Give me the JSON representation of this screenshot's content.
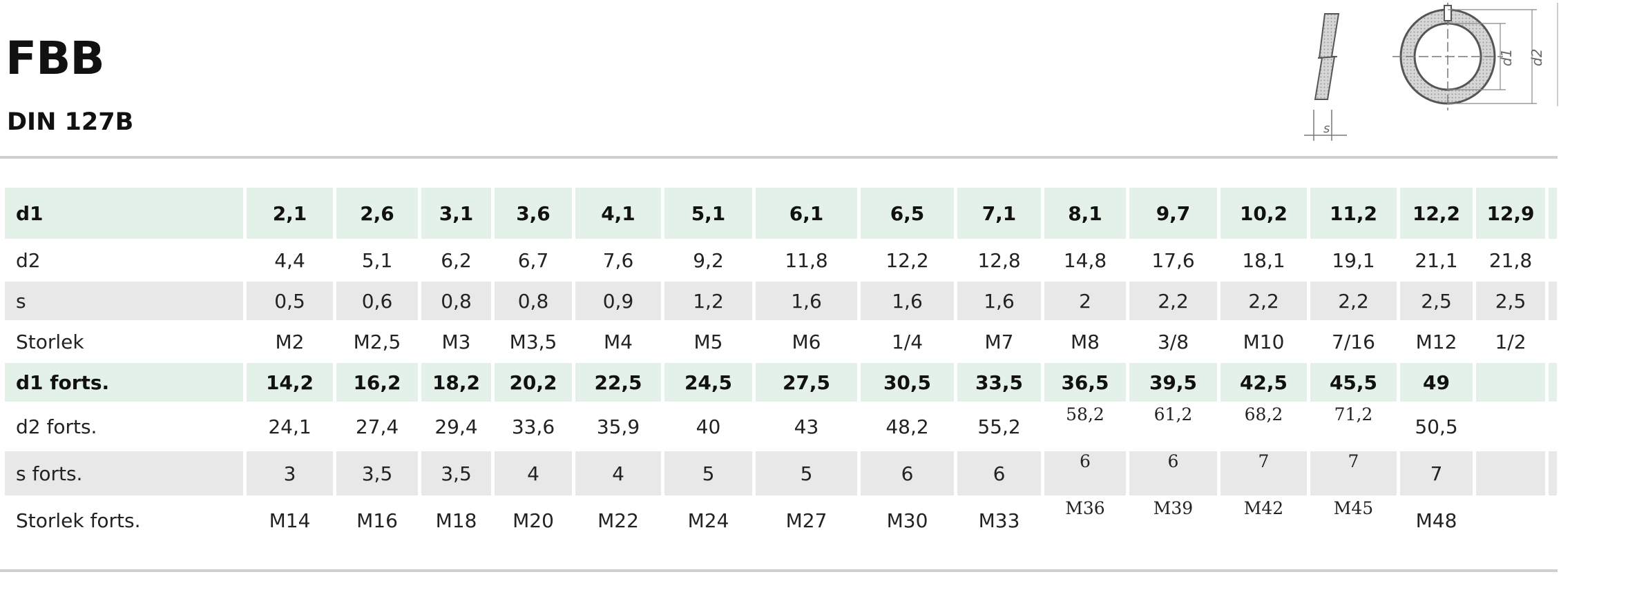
{
  "header": {
    "title": "FBB",
    "subtitle": "DIN 127B"
  },
  "diagram": {
    "label_s": "s",
    "label_d1": "d1",
    "label_d2": "d2"
  },
  "table": {
    "rows": [
      {
        "label": "d1",
        "style": "hl",
        "cells": [
          "2,1",
          "2,6",
          "3,1",
          "3,6",
          "4,1",
          "5,1",
          "6,1",
          "6,5",
          "7,1",
          "8,1",
          "9,7",
          "10,2",
          "11,2",
          "12,2",
          "12,9",
          ""
        ]
      },
      {
        "label": "d2",
        "style": "plain",
        "cells": [
          "4,4",
          "5,1",
          "6,2",
          "6,7",
          "7,6",
          "9,2",
          "11,8",
          "12,2",
          "12,8",
          "14,8",
          "17,6",
          "18,1",
          "19,1",
          "21,1",
          "21,8",
          ""
        ]
      },
      {
        "label": "s",
        "style": "gray",
        "cells": [
          "0,5",
          "0,6",
          "0,8",
          "0,8",
          "0,9",
          "1,2",
          "1,6",
          "1,6",
          "1,6",
          "2",
          "2,2",
          "2,2",
          "2,2",
          "2,5",
          "2,5",
          ""
        ]
      },
      {
        "label": "Storlek",
        "style": "plain",
        "cells": [
          "M2",
          "M2,5",
          "M3",
          "M3,5",
          "M4",
          "M5",
          "M6",
          "1/4",
          "M7",
          "M8",
          "3/8",
          "M10",
          "7/16",
          "M12",
          "1/2",
          ""
        ]
      },
      {
        "label": "d1 forts.",
        "style": "hl",
        "cells": [
          "14,2",
          "16,2",
          "18,2",
          "20,2",
          "22,5",
          "24,5",
          "27,5",
          "30,5",
          "33,5",
          "36,5",
          "39,5",
          "42,5",
          "45,5",
          "49",
          "",
          ""
        ]
      },
      {
        "label": "d2 forts.",
        "style": "plain",
        "cells": [
          "24,1",
          "27,4",
          "29,4",
          "33,6",
          "35,9",
          "40",
          "43",
          "48,2",
          "55,2",
          "58,2",
          "61,2",
          "68,2",
          "71,2",
          "50,5",
          "",
          ""
        ]
      },
      {
        "label": "s forts.",
        "style": "gray",
        "cells": [
          "3",
          "3,5",
          "3,5",
          "4",
          "4",
          "5",
          "5",
          "6",
          "6",
          "6",
          "6",
          "7",
          "7",
          "7",
          "",
          ""
        ]
      },
      {
        "label": "Storlek forts.",
        "style": "plain",
        "cells": [
          "M14",
          "M16",
          "M18",
          "M20",
          "M22",
          "M24",
          "M27",
          "M30",
          "M33",
          "M36",
          "M39",
          "M42",
          "M45",
          "M48",
          "",
          ""
        ]
      }
    ]
  }
}
